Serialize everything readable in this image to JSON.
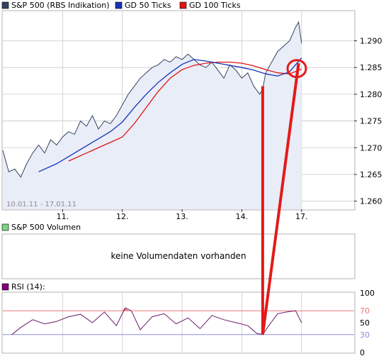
{
  "colors": {
    "price_line": "#33435e",
    "price_fill": "#e9edf8",
    "ma50": "#1633b8",
    "ma100": "#e01414",
    "rsi_line": "#6b1a6b",
    "rsi_upper": "#f07878",
    "rsi_lower": "#8a8ae0",
    "rsi_fill_over": "#f08080",
    "annotation": "#e31a1a",
    "grid": "#c9c9c9",
    "volume_legend_box": "#7fd37f",
    "rsi_legend_box": "#800080"
  },
  "chart_data": [
    {
      "type": "line",
      "title": "",
      "legend": [
        {
          "name": "S&P 500 (RBS Indikation)",
          "color": "#33435e"
        },
        {
          "name": "GD 50 Ticks",
          "color": "#1633b8"
        },
        {
          "name": "GD 100 Ticks",
          "color": "#e01414"
        }
      ],
      "date_range_label": "10.01.11 - 17.01.11",
      "x_ticks": [
        {
          "x": 1.0,
          "label": "11."
        },
        {
          "x": 2.0,
          "label": "12."
        },
        {
          "x": 3.0,
          "label": "13."
        },
        {
          "x": 4.0,
          "label": "14."
        },
        {
          "x": 5.0,
          "label": "17."
        }
      ],
      "xlim": [
        0.0,
        5.88
      ],
      "ylim": [
        1.2585,
        1.2955
      ],
      "y_ticks": [
        "1.260",
        "1.265",
        "1.270",
        "1.275",
        "1.280",
        "1.285",
        "1.290"
      ],
      "y_tick_values": [
        1.26,
        1.265,
        1.27,
        1.275,
        1.28,
        1.285,
        1.29
      ],
      "grid": true,
      "legend_position": "top",
      "series": [
        {
          "name": "S&P 500 (RBS Indikation)",
          "x": [
            0.0,
            0.1,
            0.2,
            0.3,
            0.4,
            0.5,
            0.6,
            0.7,
            0.8,
            0.9,
            1.0,
            1.1,
            1.2,
            1.3,
            1.4,
            1.5,
            1.6,
            1.7,
            1.8,
            1.9,
            2.0,
            2.1,
            2.2,
            2.3,
            2.4,
            2.5,
            2.6,
            2.7,
            2.8,
            2.9,
            3.0,
            3.1,
            3.2,
            3.3,
            3.4,
            3.5,
            3.6,
            3.7,
            3.8,
            3.9,
            4.0,
            4.1,
            4.2,
            4.3,
            4.35,
            4.4,
            4.5,
            4.6,
            4.7,
            4.8,
            4.9,
            4.95,
            5.0
          ],
          "values": [
            1.2695,
            1.2655,
            1.266,
            1.2645,
            1.267,
            1.269,
            1.2705,
            1.269,
            1.2715,
            1.2705,
            1.272,
            1.273,
            1.2725,
            1.275,
            1.274,
            1.276,
            1.2735,
            1.275,
            1.2745,
            1.276,
            1.278,
            1.28,
            1.2815,
            1.283,
            1.284,
            1.285,
            1.2855,
            1.2865,
            1.286,
            1.287,
            1.2865,
            1.2875,
            1.2865,
            1.2855,
            1.285,
            1.286,
            1.2845,
            1.283,
            1.2855,
            1.2845,
            1.283,
            1.284,
            1.2815,
            1.28,
            1.281,
            1.284,
            1.286,
            1.288,
            1.289,
            1.29,
            1.2925,
            1.2935,
            1.2895
          ]
        },
        {
          "name": "GD 50 Ticks",
          "x": [
            0.6,
            0.9,
            1.2,
            1.5,
            1.8,
            2.0,
            2.2,
            2.4,
            2.6,
            2.8,
            3.0,
            3.2,
            3.4,
            3.6,
            3.8,
            4.0,
            4.2,
            4.4,
            4.6,
            4.8,
            5.0
          ],
          "values": [
            1.2655,
            1.267,
            1.269,
            1.271,
            1.273,
            1.2748,
            1.2775,
            1.28,
            1.2822,
            1.284,
            1.2856,
            1.2865,
            1.2862,
            1.2858,
            1.2854,
            1.285,
            1.2845,
            1.2838,
            1.2834,
            1.2842,
            1.2868
          ]
        },
        {
          "name": "GD 100 Ticks",
          "x": [
            1.1,
            1.4,
            1.7,
            2.0,
            2.2,
            2.4,
            2.6,
            2.8,
            3.0,
            3.2,
            3.4,
            3.6,
            3.8,
            4.0,
            4.2,
            4.4,
            4.6,
            4.8,
            5.0
          ],
          "values": [
            1.2675,
            1.269,
            1.2705,
            1.272,
            1.2745,
            1.2775,
            1.2805,
            1.283,
            1.2846,
            1.2854,
            1.2858,
            1.286,
            1.286,
            1.2858,
            1.2853,
            1.2846,
            1.284,
            1.2838,
            1.2847
          ]
        }
      ]
    },
    {
      "type": "table",
      "legend": [
        {
          "name": "S&P 500 Volumen"
        }
      ],
      "message": "keine Volumendaten vorhanden"
    },
    {
      "type": "line",
      "legend": [
        {
          "name": "RSI (14):"
        }
      ],
      "ylim": [
        0,
        100
      ],
      "y_ticks": [
        "100",
        "70",
        "50",
        "30",
        "0"
      ],
      "y_tick_values": [
        100,
        70,
        50,
        30,
        0
      ],
      "reference_lines": [
        70,
        30
      ],
      "xlim": [
        0.0,
        5.88
      ],
      "grid": true,
      "series": [
        {
          "name": "RSI (14)",
          "x": [
            0.15,
            0.3,
            0.5,
            0.7,
            0.9,
            1.1,
            1.3,
            1.5,
            1.7,
            1.9,
            2.05,
            2.15,
            2.3,
            2.5,
            2.7,
            2.9,
            3.1,
            3.3,
            3.5,
            3.7,
            3.9,
            4.1,
            4.25,
            4.35,
            4.45,
            4.6,
            4.75,
            4.9,
            5.0
          ],
          "values": [
            30,
            42,
            55,
            48,
            52,
            60,
            64,
            50,
            68,
            45,
            75,
            70,
            38,
            60,
            65,
            48,
            58,
            40,
            62,
            55,
            50,
            45,
            32,
            30,
            45,
            65,
            68,
            70,
            50
          ]
        }
      ]
    }
  ]
}
